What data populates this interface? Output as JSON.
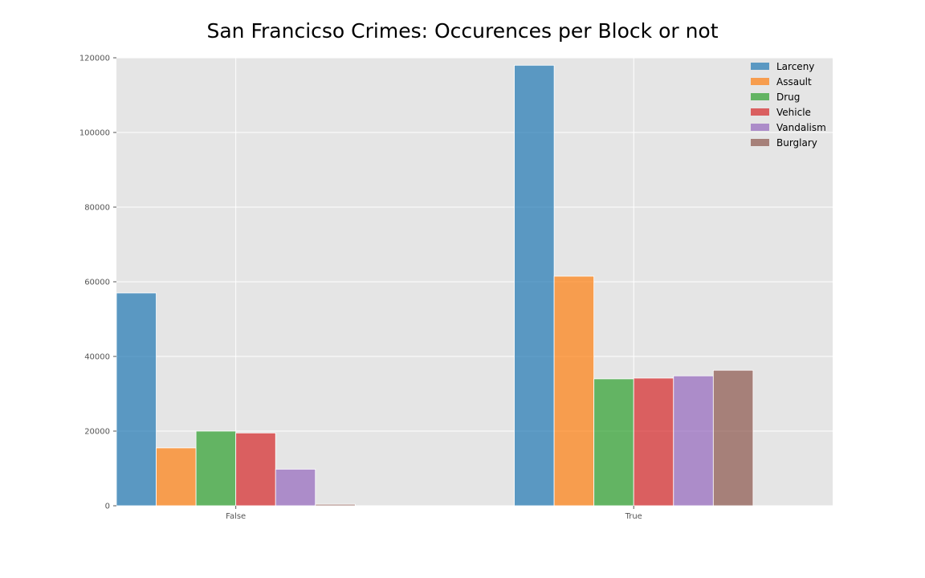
{
  "chart_data": {
    "type": "bar",
    "title": "San Francicso Crimes: Occurences per Block or not",
    "xlabel": "",
    "ylabel": "",
    "categories": [
      "False",
      "True"
    ],
    "ylim": [
      0,
      120000
    ],
    "yticks": [
      0,
      20000,
      40000,
      60000,
      80000,
      100000,
      120000
    ],
    "grid": true,
    "legend_position": "top-right",
    "series": [
      {
        "name": "Larceny",
        "color": "#1f77b4",
        "values": [
          57000,
          118000
        ]
      },
      {
        "name": "Assault",
        "color": "#ff7f0e",
        "values": [
          15500,
          61500
        ]
      },
      {
        "name": "Drug",
        "color": "#2ca02c",
        "values": [
          20000,
          34000
        ]
      },
      {
        "name": "Vehicle",
        "color": "#d62728",
        "values": [
          19500,
          34200
        ]
      },
      {
        "name": "Vandalism",
        "color": "#9467bd",
        "values": [
          9800,
          34800
        ]
      },
      {
        "name": "Burglary",
        "color": "#8c564b",
        "values": [
          400,
          36300
        ]
      }
    ],
    "colors": {
      "plot_background": "#e5e5e5",
      "grid": "#ffffff"
    }
  }
}
